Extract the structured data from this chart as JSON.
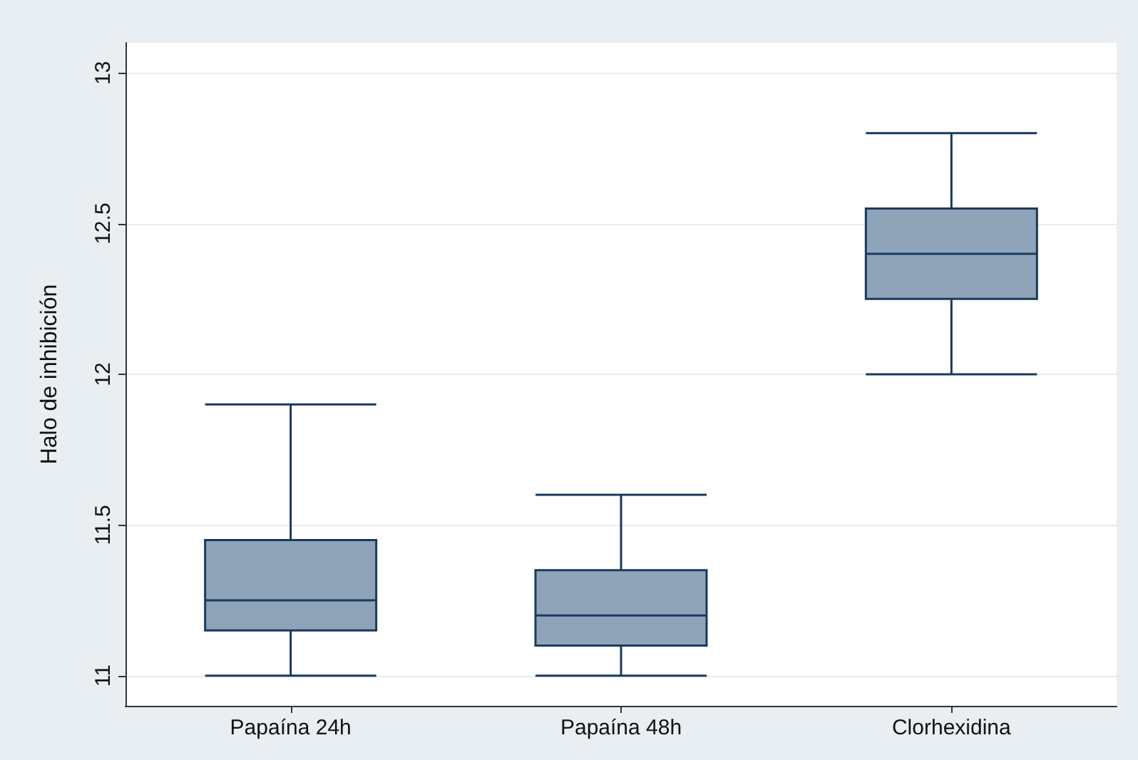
{
  "chart_data": {
    "type": "box",
    "ylabel": "Halo de inhibición",
    "categories": [
      "Papaína 24h",
      "Papaína 48h",
      "Clorhexidina"
    ],
    "boxes": [
      {
        "low": 11,
        "q1": 11.15,
        "median": 11.25,
        "q3": 11.45,
        "high": 11.9
      },
      {
        "low": 11,
        "q1": 11.1,
        "median": 11.2,
        "q3": 11.35,
        "high": 11.6
      },
      {
        "low": 12,
        "q1": 12.25,
        "median": 12.4,
        "q3": 12.55,
        "high": 12.8
      }
    ],
    "color": "#8fa4b8",
    "ylim": [
      10.9,
      13.1
    ],
    "yticks": [
      11,
      11.5,
      12,
      12.5,
      13
    ],
    "grid": "y"
  }
}
